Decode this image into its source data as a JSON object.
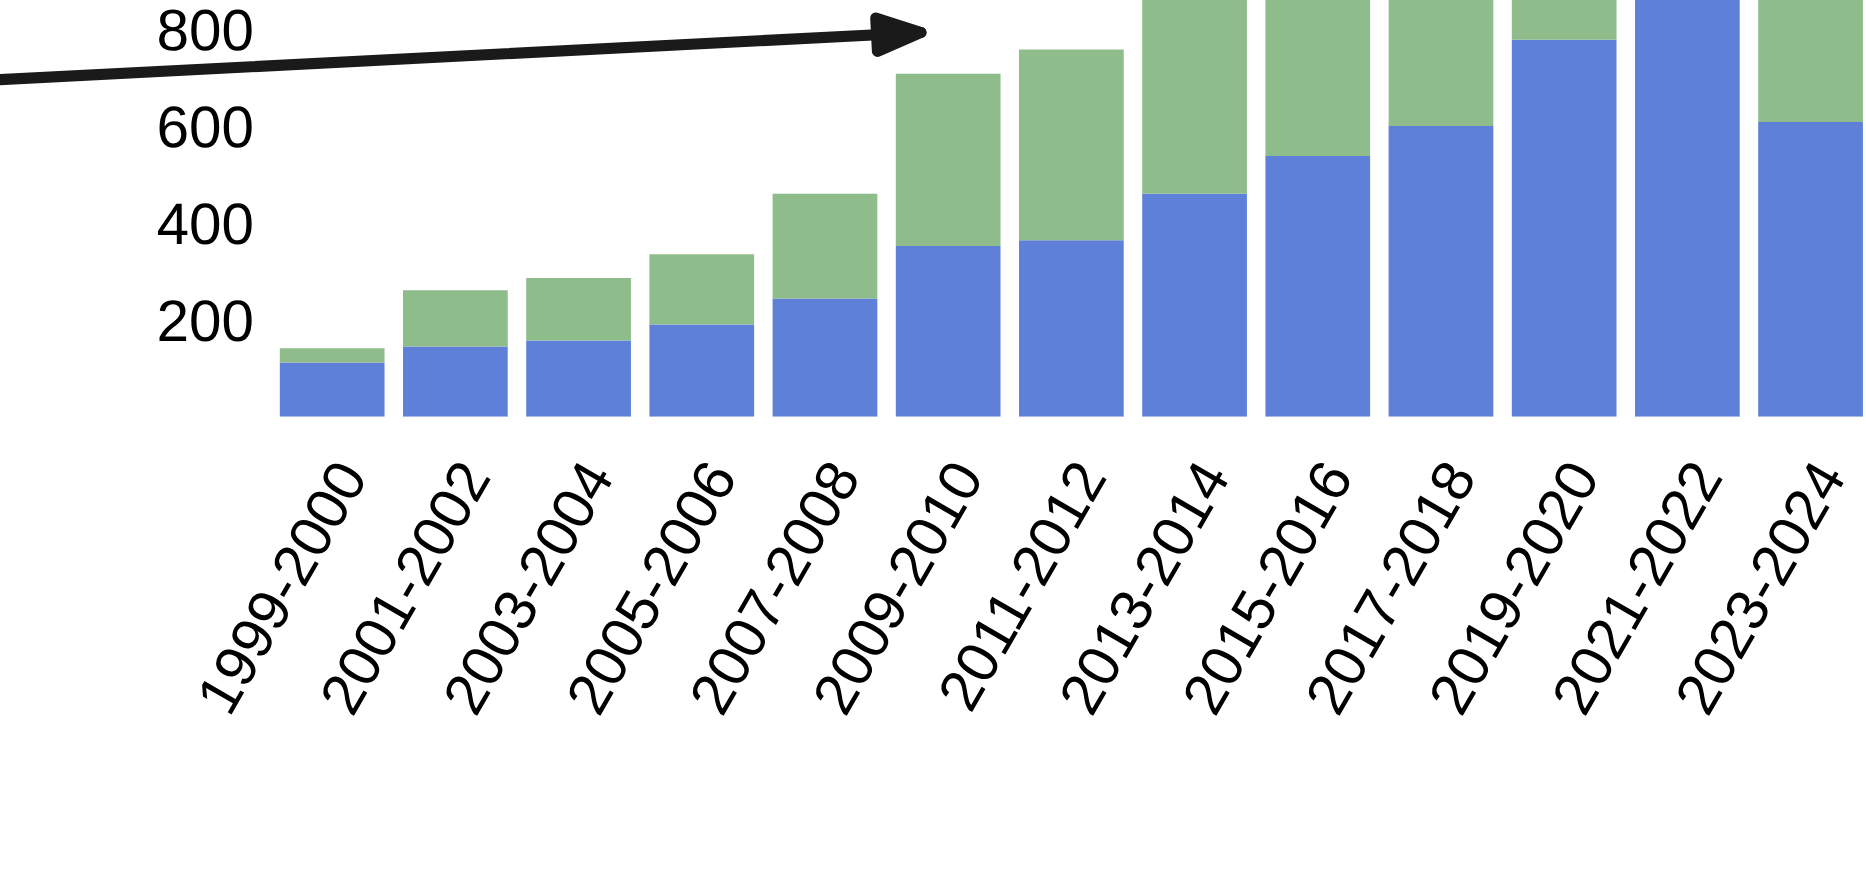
{
  "chart_data": {
    "type": "bar",
    "stacked": true,
    "categories": [
      "1999-2000",
      "2001-2002",
      "2003-2004",
      "2005-2006",
      "2007-2008",
      "2009-2010",
      "2011-2012",
      "2013-2014",
      "2015-2016",
      "2017-2018",
      "2019-2020",
      "2021-2022",
      "2023-2024"
    ],
    "series": [
      {
        "color": "#5f80d9",
        "values": [
          112,
          145,
          157,
          190,
          244,
          352,
          364,
          460,
          538,
          600,
          778,
          860,
          608
        ]
      },
      {
        "color": "#8fbc8b",
        "values": [
          29,
          116,
          129,
          145,
          216,
          356,
          394,
          400,
          322,
          260,
          82,
          0,
          252
        ]
      }
    ],
    "ylim": [
      0,
      860
    ],
    "yticks": [
      200,
      400,
      600,
      800
    ],
    "grid": false
  }
}
